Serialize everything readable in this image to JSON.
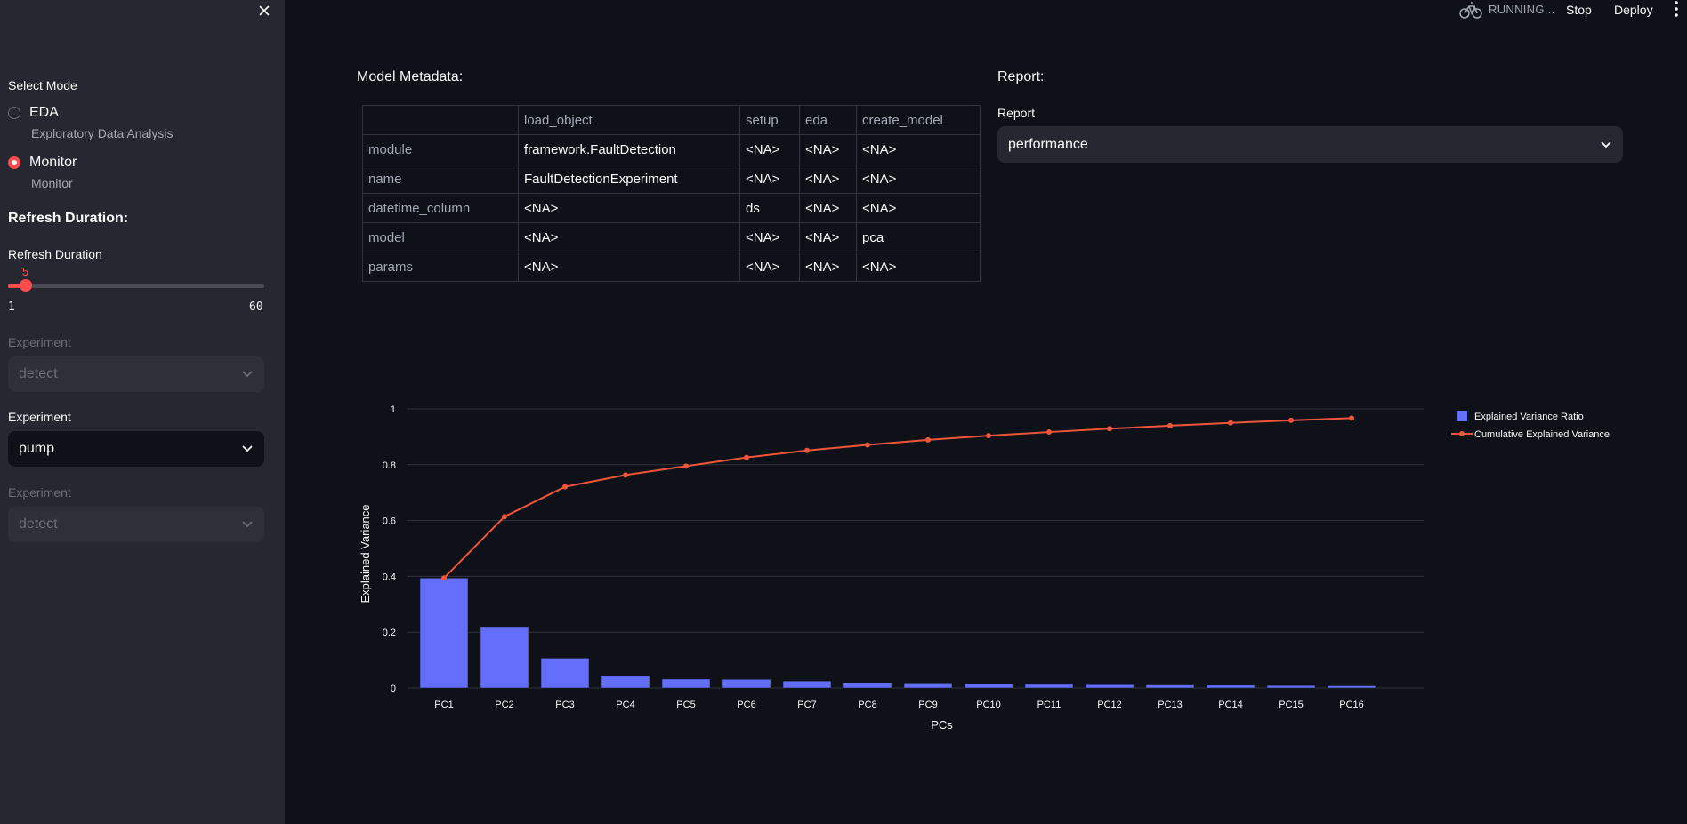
{
  "sidebar": {
    "select_mode_label": "Select Mode",
    "modes": [
      {
        "label": "EDA",
        "sublabel": "Exploratory Data Analysis",
        "selected": false
      },
      {
        "label": "Monitor",
        "sublabel": "Monitor",
        "selected": true
      }
    ],
    "refresh_heading": "Refresh Duration:",
    "refresh_slider": {
      "label": "Refresh Duration",
      "value": 5,
      "min": 1,
      "max": 60,
      "min_label": "1",
      "max_label": "60",
      "value_label": "5"
    },
    "experiment_selects": [
      {
        "label": "Experiment",
        "value": "detect",
        "disabled": true
      },
      {
        "label": "Experiment",
        "value": "pump",
        "disabled": false
      },
      {
        "label": "Experiment",
        "value": "detect",
        "disabled": true
      }
    ]
  },
  "header": {
    "status": "RUNNING...",
    "stop_label": "Stop",
    "deploy_label": "Deploy"
  },
  "main": {
    "metadata_title": "Model Metadata:",
    "report_title": "Report:",
    "report_select": {
      "label": "Report",
      "value": "performance"
    },
    "table": {
      "columns": [
        "",
        "load_object",
        "setup",
        "eda",
        "create_model"
      ],
      "rows": [
        [
          "module",
          "framework.FaultDetection",
          "<NA>",
          "<NA>",
          "<NA>"
        ],
        [
          "name",
          "FaultDetectionExperiment",
          "<NA>",
          "<NA>",
          "<NA>"
        ],
        [
          "datetime_column",
          "<NA>",
          "ds",
          "<NA>",
          "<NA>"
        ],
        [
          "model",
          "<NA>",
          "<NA>",
          "<NA>",
          "pca"
        ],
        [
          "params",
          "<NA>",
          "<NA>",
          "<NA>",
          "<NA>"
        ]
      ]
    }
  },
  "colors": {
    "accent": "#ff4b4b",
    "bar": "#636efa",
    "line": "#ef553b",
    "sidebar": "#262730",
    "background": "#0e1117"
  },
  "chart_data": {
    "type": "bar",
    "categories": [
      "PC1",
      "PC2",
      "PC3",
      "PC4",
      "PC5",
      "PC6",
      "PC7",
      "PC8",
      "PC9",
      "PC10",
      "PC11",
      "PC12",
      "PC13",
      "PC14",
      "PC15",
      "PC16"
    ],
    "series": [
      {
        "name": "Explained Variance Ratio",
        "type": "bar",
        "values": [
          0.394,
          0.22,
          0.107,
          0.042,
          0.032,
          0.031,
          0.025,
          0.02,
          0.018,
          0.015,
          0.013,
          0.012,
          0.011,
          0.01,
          0.009,
          0.008
        ]
      },
      {
        "name": "Cumulative Explained Variance",
        "type": "line",
        "values": [
          0.394,
          0.614,
          0.721,
          0.763,
          0.795,
          0.826,
          0.851,
          0.871,
          0.889,
          0.904,
          0.917,
          0.929,
          0.94,
          0.95,
          0.959,
          0.967
        ]
      }
    ],
    "xlabel": "PCs",
    "ylabel": "Explained Variance",
    "yticks": [
      "0",
      "0.2",
      "0.4",
      "0.6",
      "0.8",
      "1"
    ],
    "ylim": [
      0,
      1
    ],
    "grid": true,
    "legend_position": "top-right"
  }
}
